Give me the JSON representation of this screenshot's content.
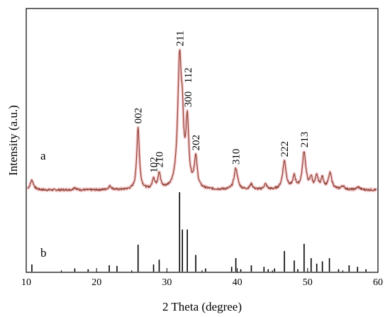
{
  "chart_data": {
    "type": "line",
    "xlabel": "2 Theta (degree)",
    "ylabel": "Intensity (a.u.)",
    "xlim": [
      10,
      60
    ],
    "xticks": [
      10,
      20,
      30,
      40,
      50,
      60
    ],
    "grid": false,
    "legend": "none",
    "colors": {
      "pattern": "#8a4030",
      "halo": "#f4c8cc",
      "reference": "#000000",
      "axis": "#000000"
    },
    "series": [
      {
        "name": "a",
        "baseline": 0.16,
        "noise": 0.012,
        "peaks": [
          {
            "x": 10.8,
            "h": 0.055,
            "w": 0.3
          },
          {
            "x": 16.9,
            "h": 0.015,
            "w": 0.2
          },
          {
            "x": 21.9,
            "h": 0.02,
            "w": 0.3
          },
          {
            "x": 25.9,
            "h": 0.35,
            "w": 0.22
          },
          {
            "x": 28.1,
            "h": 0.06,
            "w": 0.2
          },
          {
            "x": 28.9,
            "h": 0.09,
            "w": 0.22
          },
          {
            "x": 31.8,
            "h": 0.72,
            "w": 0.32
          },
          {
            "x": 32.2,
            "h": 0.25,
            "w": 0.2
          },
          {
            "x": 32.9,
            "h": 0.36,
            "w": 0.25
          },
          {
            "x": 34.1,
            "h": 0.17,
            "w": 0.25
          },
          {
            "x": 39.8,
            "h": 0.12,
            "w": 0.3
          },
          {
            "x": 42.0,
            "h": 0.03,
            "w": 0.25
          },
          {
            "x": 44.0,
            "h": 0.03,
            "w": 0.25
          },
          {
            "x": 46.7,
            "h": 0.16,
            "w": 0.3
          },
          {
            "x": 48.1,
            "h": 0.07,
            "w": 0.25
          },
          {
            "x": 49.5,
            "h": 0.21,
            "w": 0.3
          },
          {
            "x": 50.5,
            "h": 0.06,
            "w": 0.2
          },
          {
            "x": 51.3,
            "h": 0.07,
            "w": 0.25
          },
          {
            "x": 52.1,
            "h": 0.06,
            "w": 0.25
          },
          {
            "x": 53.2,
            "h": 0.09,
            "w": 0.3
          },
          {
            "x": 55.0,
            "h": 0.02,
            "w": 0.3
          },
          {
            "x": 57.2,
            "h": 0.015,
            "w": 0.3
          }
        ],
        "peak_labels": [
          {
            "text": "002",
            "x": 25.9
          },
          {
            "text": "102",
            "x": 28.1
          },
          {
            "text": "210",
            "x": 28.9
          },
          {
            "text": "211",
            "x": 31.8
          },
          {
            "text": "300",
            "x": 32.9
          },
          {
            "text": "112",
            "x": 32.9
          },
          {
            "text": "202",
            "x": 34.1
          },
          {
            "text": "310",
            "x": 39.8
          },
          {
            "text": "222",
            "x": 46.7
          },
          {
            "text": "213",
            "x": 49.5
          }
        ]
      },
      {
        "name": "b",
        "type": "stick",
        "sticks": [
          {
            "x": 10.8,
            "h": 0.09
          },
          {
            "x": 16.9,
            "h": 0.04
          },
          {
            "x": 18.8,
            "h": 0.03
          },
          {
            "x": 21.8,
            "h": 0.08
          },
          {
            "x": 22.9,
            "h": 0.07
          },
          {
            "x": 25.9,
            "h": 0.34
          },
          {
            "x": 28.1,
            "h": 0.09
          },
          {
            "x": 28.9,
            "h": 0.15
          },
          {
            "x": 31.8,
            "h": 1.0
          },
          {
            "x": 32.2,
            "h": 0.53
          },
          {
            "x": 32.9,
            "h": 0.53
          },
          {
            "x": 34.1,
            "h": 0.21
          },
          {
            "x": 35.5,
            "h": 0.04
          },
          {
            "x": 39.2,
            "h": 0.06
          },
          {
            "x": 39.8,
            "h": 0.17
          },
          {
            "x": 40.5,
            "h": 0.03
          },
          {
            "x": 42.0,
            "h": 0.08
          },
          {
            "x": 43.8,
            "h": 0.06
          },
          {
            "x": 44.4,
            "h": 0.03
          },
          {
            "x": 45.3,
            "h": 0.04
          },
          {
            "x": 46.7,
            "h": 0.26
          },
          {
            "x": 48.1,
            "h": 0.14
          },
          {
            "x": 48.6,
            "h": 0.03
          },
          {
            "x": 49.5,
            "h": 0.35
          },
          {
            "x": 50.5,
            "h": 0.17
          },
          {
            "x": 51.3,
            "h": 0.1
          },
          {
            "x": 52.1,
            "h": 0.13
          },
          {
            "x": 53.1,
            "h": 0.17
          },
          {
            "x": 54.4,
            "h": 0.03
          },
          {
            "x": 55.9,
            "h": 0.08
          },
          {
            "x": 57.1,
            "h": 0.06
          },
          {
            "x": 58.3,
            "h": 0.03
          }
        ]
      }
    ]
  }
}
